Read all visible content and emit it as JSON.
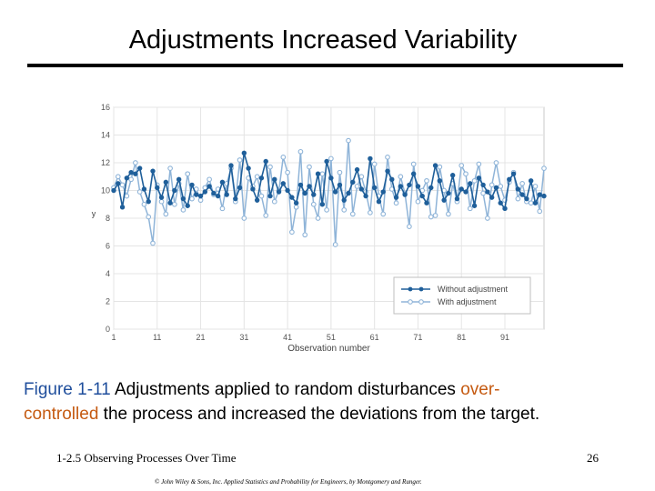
{
  "slide": {
    "title": "Adjustments Increased  Variability",
    "caption_fig": "Figure 1-11",
    "caption_text_1": "   Adjustments applied to random disturbances ",
    "caption_over": "over-",
    "caption_controlled": "controlled",
    "caption_text_2": " the process and increased the deviations from the target.",
    "footer_left": "1-2.5 Observing Processes Over Time",
    "footer_page": "26",
    "copyright": "© John Wiley & Sons, Inc.  Applied Statistics and Probability for Engineers, by Montgomery and Runger."
  },
  "colors": {
    "without": "#1f5f9a",
    "with": "#8fb4d8",
    "accent_blue": "#1f4e9c",
    "accent_orange": "#c55a11"
  },
  "chart_data": {
    "type": "line",
    "xlabel": "Observation number",
    "ylabel": "y",
    "xlim": [
      1,
      100
    ],
    "ylim": [
      0,
      16
    ],
    "xticks": [
      "1",
      "11",
      "21",
      "31",
      "41",
      "51",
      "61",
      "71",
      "81",
      "91"
    ],
    "xtick_values": [
      1,
      11,
      21,
      31,
      41,
      51,
      61,
      71,
      81,
      91
    ],
    "yticks": [
      "0",
      "2",
      "4",
      "6",
      "8",
      "10",
      "12",
      "14",
      "16"
    ],
    "ytick_values": [
      0,
      2,
      4,
      6,
      8,
      10,
      12,
      14,
      16
    ],
    "legend_position": "bottom-right",
    "series": [
      {
        "name": "Without adjustment",
        "marker": "filled",
        "values": [
          10.0,
          10.5,
          8.8,
          10.9,
          11.3,
          11.2,
          11.6,
          10.1,
          9.2,
          11.4,
          10.2,
          9.5,
          10.6,
          9.1,
          10.0,
          10.8,
          9.4,
          8.9,
          10.4,
          9.7,
          9.6,
          9.9,
          10.3,
          9.8,
          9.6,
          10.6,
          9.7,
          11.8,
          9.4,
          10.2,
          12.7,
          11.6,
          10.1,
          9.3,
          10.9,
          12.1,
          9.6,
          10.8,
          9.9,
          10.5,
          10.0,
          9.5,
          9.1,
          10.4,
          9.8,
          10.3,
          9.7,
          11.2,
          9.0,
          12.1,
          10.9,
          9.9,
          10.4,
          9.3,
          9.8,
          10.6,
          11.5,
          10.1,
          9.6,
          12.3,
          10.2,
          9.2,
          9.9,
          11.4,
          10.8,
          9.5,
          10.3,
          9.7,
          10.4,
          11.2,
          10.3,
          9.6,
          9.1,
          10.2,
          11.8,
          10.7,
          9.3,
          9.8,
          11.1,
          9.4,
          10.1,
          9.9,
          10.5,
          8.9,
          10.9,
          10.4,
          9.9,
          9.5,
          10.2,
          9.1,
          8.7,
          10.8,
          11.2,
          10.1,
          9.7,
          9.4,
          10.7,
          9.1,
          9.7,
          9.6
        ]
      },
      {
        "name": "With adjustment",
        "marker": "open",
        "values": [
          10.2,
          11.0,
          10.4,
          9.6,
          10.8,
          12.0,
          9.9,
          9.0,
          8.1,
          6.2,
          10.4,
          9.2,
          8.3,
          11.6,
          9.0,
          10.5,
          8.6,
          11.2,
          9.4,
          10.1,
          9.3,
          10.2,
          10.8,
          9.7,
          10.1,
          8.7,
          10.5,
          11.6,
          9.2,
          12.2,
          8.0,
          10.9,
          10.3,
          11.0,
          9.6,
          8.2,
          11.7,
          9.2,
          10.0,
          12.4,
          11.3,
          7.0,
          8.8,
          12.8,
          6.8,
          11.7,
          9.0,
          8.0,
          11.2,
          8.6,
          12.3,
          6.1,
          11.3,
          8.6,
          13.6,
          8.3,
          10.3,
          11.0,
          9.9,
          8.4,
          11.9,
          9.6,
          8.3,
          12.4,
          10.1,
          9.1,
          11.0,
          9.8,
          7.4,
          11.9,
          9.2,
          10.0,
          10.7,
          8.1,
          8.2,
          11.7,
          10.0,
          8.3,
          10.5,
          9.2,
          11.8,
          11.2,
          8.7,
          10.7,
          11.9,
          9.8,
          8.0,
          10.4,
          12.0,
          10.3,
          9.3,
          10.6,
          11.3,
          9.4,
          10.5,
          9.2,
          9.1,
          10.3,
          8.5,
          11.6
        ]
      }
    ]
  }
}
